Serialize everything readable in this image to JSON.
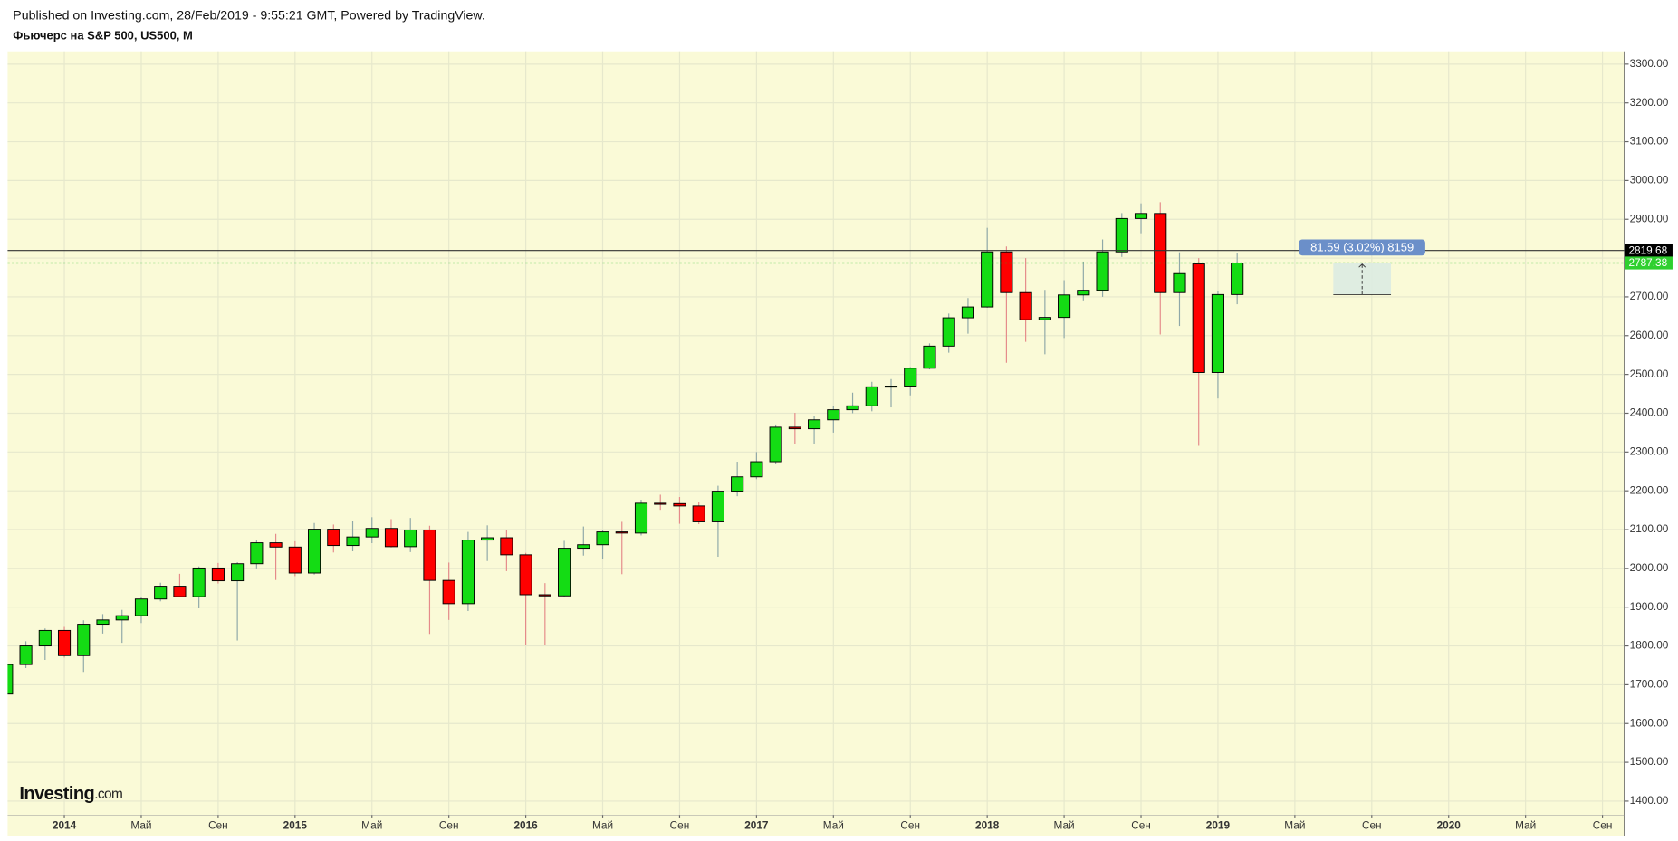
{
  "header": {
    "published": "Published on Investing.com, 28/Feb/2019 - 9:55:21 GMT, Powered by TradingView.",
    "instrument": "Фьючерс на S&P 500, US500, M"
  },
  "logo": {
    "name": "Investing",
    "suffix": ".com"
  },
  "chart_data": {
    "type": "candlestick",
    "x": [
      -3,
      -2,
      -1,
      0,
      1,
      2,
      3,
      4,
      5,
      6,
      7,
      8,
      9,
      10,
      11,
      12,
      13,
      14,
      15,
      16,
      17,
      18,
      19,
      20,
      21,
      22,
      23,
      24,
      25,
      26,
      27,
      28,
      29,
      30,
      31,
      32,
      33,
      34,
      35,
      36,
      37,
      38,
      39,
      40,
      41,
      42,
      43,
      44,
      45,
      46,
      47,
      48,
      49,
      50,
      51,
      52,
      53,
      54,
      55,
      56,
      57,
      58,
      59,
      60,
      61
    ],
    "open": [
      1676,
      1752,
      1800,
      1840,
      1775,
      1856,
      1867,
      1878,
      1921,
      1954,
      1927,
      2001,
      1968,
      2012,
      2066,
      2055,
      1988,
      2101,
      2059,
      2081,
      2103,
      2056,
      2099,
      1969,
      1909,
      2073,
      2079,
      2035,
      1932,
      1929,
      2052,
      2061,
      2094,
      2091,
      2168,
      2167,
      2161,
      2120,
      2199,
      2236,
      2275,
      2364,
      2360,
      2383,
      2409,
      2419,
      2468,
      2470,
      2516,
      2573,
      2646,
      2674,
      2816,
      2711,
      2641,
      2647,
      2705,
      2717,
      2816,
      2902,
      2915,
      2711,
      2785,
      2505,
      2706
    ],
    "high": [
      1762,
      1812,
      1845,
      1849,
      1866,
      1882,
      1893,
      1925,
      1963,
      1986,
      2005,
      2014,
      2016,
      2073,
      2089,
      2070,
      2117,
      2113,
      2123,
      2132,
      2127,
      2130,
      2110,
      2015,
      2094,
      2111,
      2098,
      2040,
      1962,
      2071,
      2108,
      2099,
      2120,
      2177,
      2190,
      2184,
      2170,
      2213,
      2275,
      2300,
      2371,
      2401,
      2394,
      2418,
      2453,
      2481,
      2488,
      2519,
      2580,
      2657,
      2697,
      2878,
      2830,
      2800,
      2718,
      2743,
      2791,
      2848,
      2916,
      2941,
      2944,
      2815,
      2800,
      2714,
      2813
    ],
    "low": [
      1640,
      1743,
      1764,
      1770,
      1733,
      1832,
      1808,
      1859,
      1915,
      1925,
      1897,
      1961,
      1814,
      2000,
      1970,
      1980,
      1984,
      2041,
      2044,
      2065,
      2054,
      2042,
      1831,
      1867,
      1890,
      2019,
      1993,
      1802,
      1802,
      1926,
      2033,
      2025,
      1985,
      2085,
      2151,
      2115,
      2114,
      2030,
      2186,
      2230,
      2270,
      2320,
      2320,
      2350,
      2400,
      2405,
      2415,
      2446,
      2513,
      2556,
      2605,
      2672,
      2530,
      2584,
      2552,
      2594,
      2691,
      2700,
      2803,
      2864,
      2603,
      2625,
      2316,
      2438,
      2681
    ],
    "close": [
      1752,
      1800,
      1840,
      1775,
      1856,
      1867,
      1878,
      1921,
      1954,
      1927,
      2001,
      1968,
      2012,
      2066,
      2055,
      1988,
      2101,
      2059,
      2081,
      2103,
      2056,
      2099,
      1969,
      1909,
      2073,
      2079,
      2035,
      1932,
      1929,
      2052,
      2061,
      2094,
      2091,
      2168,
      2167,
      2161,
      2120,
      2199,
      2236,
      2275,
      2364,
      2360,
      2383,
      2409,
      2419,
      2468,
      2470,
      2516,
      2573,
      2646,
      2674,
      2816,
      2711,
      2641,
      2647,
      2705,
      2717,
      2816,
      2902,
      2915,
      2711,
      2760,
      2505,
      2706,
      2787.38
    ],
    "up_color": "#14dc14",
    "down_color": "#ff0000",
    "ylim": [
      1364,
      3333
    ],
    "xlim": [
      -2.95,
      81.14
    ],
    "yticks": [
      {
        "value": 1400,
        "label": "1400.00"
      },
      {
        "value": 1500,
        "label": "1500.00"
      },
      {
        "value": 1600,
        "label": "1600.00"
      },
      {
        "value": 1700,
        "label": "1700.00"
      },
      {
        "value": 1800,
        "label": "1800.00"
      },
      {
        "value": 1900,
        "label": "1900.00"
      },
      {
        "value": 2000,
        "label": "2000.00"
      },
      {
        "value": 2100,
        "label": "2100.00"
      },
      {
        "value": 2200,
        "label": "2200.00"
      },
      {
        "value": 2300,
        "label": "2300.00"
      },
      {
        "value": 2400,
        "label": "2400.00"
      },
      {
        "value": 2500,
        "label": "2500.00"
      },
      {
        "value": 2600,
        "label": "2600.00"
      },
      {
        "value": 2700,
        "label": "2700.00"
      },
      {
        "value": 2800,
        "label": "2800.00"
      },
      {
        "value": 2900,
        "label": "2900.00"
      },
      {
        "value": 3000,
        "label": "3000.00"
      },
      {
        "value": 3100,
        "label": "3100.00"
      },
      {
        "value": 3200,
        "label": "3200.00"
      },
      {
        "value": 3300,
        "label": "3300.00"
      }
    ],
    "xticks": [
      {
        "value": 0,
        "label": "2014"
      },
      {
        "value": 4,
        "label": "Май"
      },
      {
        "value": 8,
        "label": "Сен"
      },
      {
        "value": 12,
        "label": "2015"
      },
      {
        "value": 16,
        "label": "Май"
      },
      {
        "value": 20,
        "label": "Сен"
      },
      {
        "value": 24,
        "label": "2016"
      },
      {
        "value": 28,
        "label": "Май"
      },
      {
        "value": 32,
        "label": "Сен"
      },
      {
        "value": 36,
        "label": "2017"
      },
      {
        "value": 40,
        "label": "Май"
      },
      {
        "value": 44,
        "label": "Сен"
      },
      {
        "value": 48,
        "label": "2018"
      },
      {
        "value": 52,
        "label": "Май"
      },
      {
        "value": 56,
        "label": "Сен"
      },
      {
        "value": 60,
        "label": "2019"
      },
      {
        "value": 64,
        "label": "Май"
      },
      {
        "value": 68,
        "label": "Сен"
      },
      {
        "value": 72,
        "label": "2020"
      },
      {
        "value": 76,
        "label": "Май"
      },
      {
        "value": 80,
        "label": "Сен"
      }
    ],
    "grid": true,
    "reference_price": 2819.68,
    "last_price": 2787.38,
    "measure": {
      "label": "81.59 (3.02%) 8159",
      "from": 2705.79,
      "to": 2787.38,
      "x_start": 66,
      "x_end": 69
    }
  }
}
